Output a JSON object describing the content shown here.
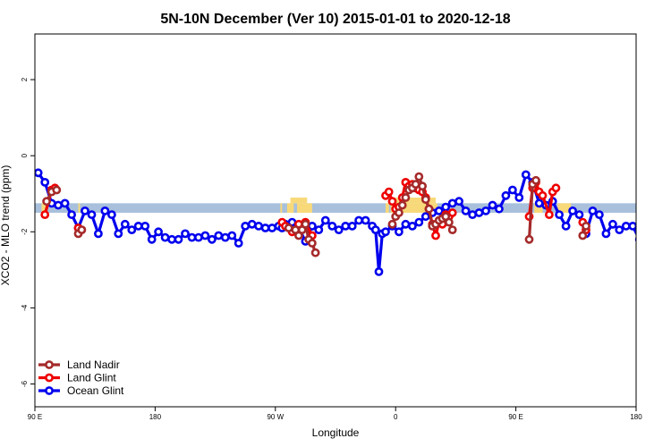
{
  "chart_data": {
    "type": "line",
    "title": "5N-10N December (Ver 10)   2015-01-01 to 2020-12-18",
    "xlabel": "Longitude",
    "ylabel": "XCO2 - MLO trend (ppm)",
    "xlim": [
      90,
      450
    ],
    "ylim": [
      -6.6,
      3.2
    ],
    "x_ticks": [
      {
        "value": 90,
        "label": "90 E"
      },
      {
        "value": 162,
        "label": "180"
      },
      {
        "value": 234,
        "label": "90 W"
      },
      {
        "value": 306,
        "label": "0"
      },
      {
        "value": 378,
        "label": "90 E"
      },
      {
        "value": 450,
        "label": "180"
      }
    ],
    "y_ticks": [
      {
        "value": -6,
        "label": "-6"
      },
      {
        "value": -4,
        "label": "-4"
      },
      {
        "value": -2,
        "label": "-2"
      },
      {
        "value": 0,
        "label": "0"
      },
      {
        "value": 2,
        "label": "2"
      }
    ],
    "band": {
      "ymin": -1.5,
      "ymax": -1.25,
      "color": "#a8c0dc"
    },
    "land_segments": [
      {
        "x0": 94,
        "x1": 97
      },
      {
        "x0": 116,
        "x1": 117
      },
      {
        "x0": 237,
        "x1": 238
      },
      {
        "x0": 241,
        "x1": 245
      },
      {
        "x0": 247,
        "x1": 256
      },
      {
        "x0": 300,
        "x1": 302
      },
      {
        "x0": 303,
        "x1": 331
      },
      {
        "x0": 389,
        "x1": 394
      },
      {
        "x0": 403,
        "x1": 411
      }
    ],
    "land_color": "#f8d97a",
    "legend": {
      "position": "bottom-left",
      "entries": [
        "Land Nadir",
        "Land Glint",
        "Ocean Glint"
      ]
    },
    "series": [
      {
        "name": "Ocean Glint",
        "color": "#0000ee",
        "x": [
          92,
          96,
          100,
          104,
          108,
          112,
          116,
          120,
          124,
          128,
          132,
          136,
          140,
          144,
          148,
          152,
          156,
          160,
          164,
          168,
          172,
          176,
          180,
          184,
          188,
          192,
          196,
          200,
          204,
          208,
          212,
          216,
          220,
          224,
          228,
          232,
          236,
          238,
          240,
          244,
          248,
          252,
          256,
          260,
          264,
          268,
          272,
          276,
          280,
          284,
          288,
          292,
          294,
          296,
          298,
          300,
          304,
          308,
          312,
          316,
          320,
          324,
          328,
          332,
          336,
          340,
          344,
          348,
          352,
          356,
          360,
          364,
          368,
          372,
          376,
          380,
          384,
          388,
          392,
          396,
          400,
          404,
          408,
          412,
          416,
          420,
          424,
          428,
          432,
          436,
          440,
          444,
          448,
          452
        ],
        "y": [
          -0.45,
          -0.7,
          -1.25,
          -1.3,
          -1.25,
          -1.55,
          -1.9,
          -1.45,
          -1.55,
          -2.05,
          -1.45,
          -1.55,
          -2.05,
          -1.8,
          -1.95,
          -1.85,
          -1.85,
          -2.2,
          -2.0,
          -2.15,
          -2.2,
          -2.2,
          -2.05,
          -2.15,
          -2.15,
          -2.1,
          -2.2,
          -2.1,
          -2.15,
          -2.1,
          -2.3,
          -1.85,
          -1.8,
          -1.85,
          -1.9,
          -1.9,
          -1.85,
          -1.9,
          -1.8,
          -1.75,
          -1.9,
          -2.25,
          -1.85,
          -1.95,
          -1.7,
          -1.85,
          -1.95,
          -1.85,
          -1.85,
          -1.7,
          -1.7,
          -1.85,
          -1.95,
          -3.05,
          -2.05,
          -2.0,
          -1.85,
          -2.0,
          -1.8,
          -1.85,
          -1.75,
          -1.6,
          -1.5,
          -1.45,
          -1.35,
          -1.25,
          -1.2,
          -1.45,
          -1.55,
          -1.5,
          -1.45,
          -1.3,
          -1.4,
          -1.05,
          -0.9,
          -1.1,
          -0.5,
          -0.7,
          -1.25,
          -1.3,
          -1.2,
          -1.55,
          -1.85,
          -1.45,
          -1.55,
          -2.05,
          -1.45,
          -1.55,
          -2.05,
          -1.8,
          -1.95,
          -1.85,
          -1.85,
          -2.2
        ]
      },
      {
        "name": "Land Glint",
        "color": "#ee0000",
        "segments": [
          {
            "x": [
              96,
              100,
              102
            ],
            "y": [
              -1.55,
              -0.9,
              -0.85
            ]
          },
          {
            "x": [
              116,
              118
            ],
            "y": [
              -1.9,
              -1.95
            ]
          },
          {
            "x": [
              238,
              240,
              244,
              248,
              252,
              256
            ],
            "y": [
              -1.75,
              -1.85,
              -2.0,
              -1.8,
              -1.75,
              -2.1
            ]
          },
          {
            "x": [
              300,
              302,
              304,
              306,
              308,
              310,
              312,
              314,
              316,
              318,
              320,
              322,
              324,
              326,
              328,
              330,
              332,
              334,
              336,
              338,
              340
            ],
            "y": [
              -1.05,
              -0.95,
              -1.2,
              -1.4,
              -1.35,
              -1.1,
              -0.7,
              -0.8,
              -0.75,
              -0.85,
              -0.9,
              -0.95,
              -1.1,
              -1.4,
              -1.8,
              -2.1,
              -1.75,
              -1.8,
              -1.55,
              -1.6,
              -1.5
            ]
          },
          {
            "x": [
              386,
              388,
              390,
              392,
              394,
              398,
              400,
              402
            ],
            "y": [
              -1.6,
              -0.85,
              -0.7,
              -0.95,
              -1.05,
              -1.55,
              -0.95,
              -0.85
            ]
          },
          {
            "x": [
              418,
              420
            ],
            "y": [
              -1.75,
              -1.95
            ]
          }
        ]
      },
      {
        "name": "Land Nadir",
        "color": "#a52a2a",
        "segments": [
          {
            "x": [
              97,
              100,
              103
            ],
            "y": [
              -1.2,
              -0.95,
              -0.9
            ]
          },
          {
            "x": [
              116,
              118
            ],
            "y": [
              -2.05,
              -1.95
            ]
          },
          {
            "x": [
              242,
              246,
              248,
              250,
              252,
              254,
              256,
              258
            ],
            "y": [
              -1.9,
              -1.95,
              -2.1,
              -1.95,
              -1.8,
              -2.2,
              -2.3,
              -2.55
            ]
          },
          {
            "x": [
              304,
              306,
              308,
              310,
              312,
              314,
              316,
              318,
              320,
              322,
              324,
              326,
              328,
              330,
              332,
              334,
              336,
              338,
              340
            ],
            "y": [
              -1.8,
              -1.6,
              -1.5,
              -1.3,
              -1.1,
              -0.9,
              -0.85,
              -0.75,
              -0.55,
              -0.8,
              -1.15,
              -1.4,
              -1.85,
              -1.8,
              -1.7,
              -1.65,
              -1.6,
              -1.75,
              -1.95
            ]
          },
          {
            "x": [
              386,
              388,
              390
            ],
            "y": [
              -2.2,
              -0.75,
              -0.65
            ]
          },
          {
            "x": [
              418,
              420
            ],
            "y": [
              -2.1,
              -1.85
            ]
          }
        ]
      }
    ]
  }
}
